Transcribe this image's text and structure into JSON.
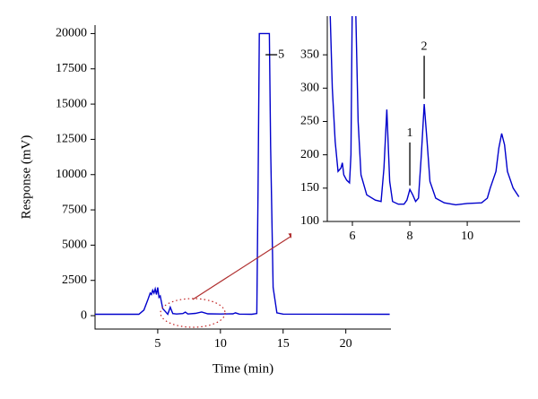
{
  "chart_data": [
    {
      "type": "line",
      "xlabel": "Time (min)",
      "ylabel": "Response (mV)",
      "color": "#0000cc",
      "xlim": [
        0,
        23.6
      ],
      "ylim": [
        -950,
        20600
      ],
      "xticks": [
        5,
        10,
        15,
        20
      ],
      "yticks": [
        0,
        2500,
        5000,
        7500,
        10000,
        12500,
        15000,
        17500,
        20000
      ],
      "x": [
        0,
        3.5,
        3.9,
        4.2,
        4.4,
        4.5,
        4.6,
        4.7,
        4.8,
        4.9,
        5.0,
        5.1,
        5.2,
        5.4,
        5.6,
        5.8,
        6.0,
        6.2,
        6.5,
        7.0,
        7.2,
        7.4,
        8.0,
        8.5,
        9.0,
        10.0,
        11.0,
        11.2,
        11.5,
        12.5,
        12.9,
        13.0,
        13.1,
        13.9,
        14.0,
        14.2,
        14.5,
        15.0,
        23.5
      ],
      "values": [
        100,
        100,
        400,
        1100,
        1600,
        1500,
        1800,
        1600,
        1900,
        1500,
        2000,
        1300,
        1400,
        500,
        300,
        100,
        600,
        150,
        120,
        150,
        250,
        120,
        160,
        260,
        130,
        120,
        130,
        200,
        110,
        100,
        150,
        9000,
        20000,
        20000,
        12000,
        2000,
        200,
        110,
        100
      ],
      "annotations": [
        {
          "text": "5",
          "x": 14.6,
          "y": 18500
        }
      ]
    },
    {
      "type": "line",
      "color": "#0000cc",
      "xlim": [
        5.125,
        11.84
      ],
      "ylim": [
        100,
        408
      ],
      "xticks": [
        6,
        8,
        10
      ],
      "yticks": [
        100,
        150,
        200,
        250,
        300,
        350
      ],
      "x": [
        5.2,
        5.3,
        5.4,
        5.5,
        5.6,
        5.65,
        5.7,
        5.8,
        5.9,
        5.95,
        6.0,
        6.1,
        6.2,
        6.3,
        6.5,
        6.8,
        7.0,
        7.1,
        7.2,
        7.3,
        7.4,
        7.6,
        7.8,
        7.9,
        8.0,
        8.1,
        8.2,
        8.3,
        8.4,
        8.5,
        8.6,
        8.7,
        8.9,
        9.2,
        9.6,
        10.0,
        10.5,
        10.7,
        10.8,
        11.0,
        11.1,
        11.2,
        11.3,
        11.4,
        11.6,
        11.8
      ],
      "values": [
        450,
        300,
        220,
        175,
        180,
        188,
        170,
        162,
        158,
        200,
        450,
        450,
        250,
        170,
        140,
        132,
        130,
        180,
        268,
        160,
        130,
        126,
        126,
        132,
        148,
        140,
        130,
        135,
        200,
        276,
        220,
        160,
        135,
        128,
        125,
        127,
        128,
        135,
        150,
        175,
        210,
        232,
        215,
        175,
        150,
        137
      ],
      "annotations": [
        {
          "text": "1",
          "x": 8.0,
          "y": 232
        },
        {
          "text": "2",
          "x": 8.5,
          "y": 362
        }
      ]
    }
  ]
}
